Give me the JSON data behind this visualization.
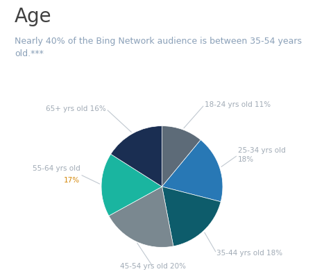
{
  "title": "Age",
  "subtitle": "Nearly 40% of the Bing Network audience is between 35-54 years\nold.***",
  "title_color": "#404040",
  "subtitle_color": "#8aa0b8",
  "slices": [
    {
      "label": "18-24 yrs old 11%",
      "value": 11,
      "color": "#5d6b78",
      "label_lines": 1
    },
    {
      "label": "25-34 yrs old\n18%",
      "value": 18,
      "color": "#2878b5",
      "label_lines": 2
    },
    {
      "label": "35-44 yrs old 18%",
      "value": 18,
      "color": "#0d5c6b",
      "label_lines": 1
    },
    {
      "label": "45-54 yrs old 20%",
      "value": 20,
      "color": "#7a8890",
      "label_lines": 1
    },
    {
      "label": "55-64 yrs old\n17%",
      "value": 17,
      "color": "#1ab5a0",
      "label_lines": 2
    },
    {
      "label": "65+ yrs old 16%",
      "value": 16,
      "color": "#1a2e52",
      "label_lines": 1
    }
  ],
  "highlight_slice": 4,
  "highlight_color": "#d4880a",
  "label_color": "#a0aab5",
  "label_fontsize": 7.5,
  "title_fontsize": 20,
  "subtitle_fontsize": 9,
  "startangle": 90,
  "background_color": "#ffffff",
  "line_color": "#c0c8d0",
  "line_lw": 0.8
}
